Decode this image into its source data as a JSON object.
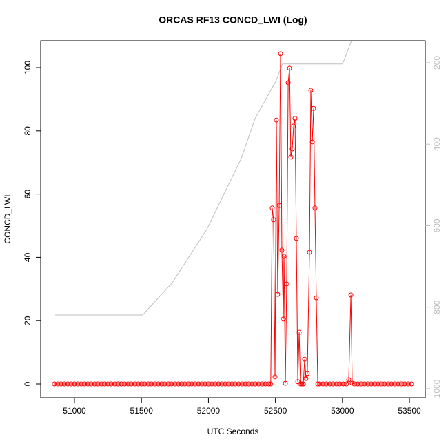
{
  "chart_data": {
    "type": "line",
    "title": "ORCAS RF13 CONCD_LWI (Log)",
    "xlabel": "UTC Seconds",
    "ylabel": "CONCD_LWI",
    "xlim": [
      50748,
      53618
    ],
    "xticks": [
      51000,
      51500,
      52000,
      52500,
      53000,
      53500
    ],
    "ylim": [
      -4.36,
      108.5
    ],
    "yticks": [
      0,
      20,
      40,
      60,
      80,
      100
    ],
    "y2lim": [
      1022,
      146
    ],
    "y2ticks": [
      200,
      400,
      600,
      800,
      1000
    ],
    "y2color": "#bebebe",
    "series": [
      {
        "color": "#ff0000",
        "marker": "circle",
        "x": [
          50850,
          50875,
          50900,
          50925,
          50950,
          50975,
          51000,
          51025,
          51050,
          51075,
          51100,
          51125,
          51150,
          51175,
          51200,
          51225,
          51250,
          51275,
          51300,
          51325,
          51350,
          51375,
          51400,
          51425,
          51450,
          51475,
          51500,
          51525,
          51550,
          51575,
          51600,
          51625,
          51650,
          51675,
          51700,
          51725,
          51750,
          51775,
          51800,
          51825,
          51850,
          51875,
          51900,
          51925,
          51950,
          51975,
          52000,
          52025,
          52050,
          52075,
          52100,
          52125,
          52150,
          52175,
          52200,
          52225,
          52250,
          52275,
          52300,
          52325,
          52350,
          52375,
          52400,
          52425,
          52450,
          52465,
          52476,
          52486,
          52497,
          52507,
          52517,
          52528,
          52538,
          52548,
          52559,
          52564,
          52574,
          52584,
          52595,
          52605,
          52615,
          52625,
          52636,
          52646,
          52656,
          52667,
          52677,
          52687,
          52697,
          52708,
          52718,
          52728,
          52738,
          52754,
          52764,
          52775,
          52785,
          52795,
          52805,
          52816,
          52830,
          52855,
          52880,
          52905,
          52930,
          52955,
          52980,
          53005,
          53030,
          53047,
          53063,
          53073,
          53090,
          53115,
          53140,
          53165,
          53190,
          53215,
          53240,
          53265,
          53290,
          53315,
          53340,
          53365,
          53390,
          53415,
          53440,
          53465,
          53490,
          53515
        ],
        "values": [
          0,
          0,
          0,
          0,
          0,
          0,
          0,
          0,
          0,
          0,
          0,
          0,
          0,
          0,
          0,
          0,
          0,
          0,
          0,
          0,
          0,
          0,
          0,
          0,
          0,
          0,
          0,
          0,
          0,
          0,
          0,
          0,
          0,
          0,
          0,
          0,
          0,
          0,
          0,
          0,
          0,
          0,
          0,
          0,
          0,
          0,
          0,
          0,
          0,
          0,
          0,
          0,
          0,
          0,
          0,
          0,
          0,
          0,
          0,
          0,
          0,
          0,
          0,
          0,
          0,
          0,
          55.6,
          51.9,
          2.2,
          83.4,
          28.3,
          56.4,
          104.4,
          42.3,
          20.5,
          40.3,
          0.2,
          31.6,
          95.2,
          99.8,
          71.7,
          74.3,
          81.5,
          83.9,
          46.0,
          0.7,
          16.3,
          0,
          0,
          0,
          7.8,
          1.7,
          3.3,
          41.6,
          92.8,
          76.5,
          87.1,
          55.6,
          27.2,
          0,
          0,
          0,
          0,
          0,
          0,
          0,
          0,
          0,
          0,
          1.3,
          28.1,
          0.2,
          0,
          0,
          0,
          0,
          0,
          0,
          0,
          0,
          0,
          0,
          0,
          0,
          0,
          0,
          0,
          0,
          0,
          0
        ]
      },
      {
        "color": "#bebebe",
        "axis": "y2",
        "x": [
          50856,
          51509,
          51730,
          51988,
          52245,
          52348,
          52502,
          52553,
          53001,
          53068
        ],
        "values": [
          819,
          819,
          740,
          609,
          435,
          337,
          246,
          203,
          203,
          146
        ]
      }
    ]
  }
}
